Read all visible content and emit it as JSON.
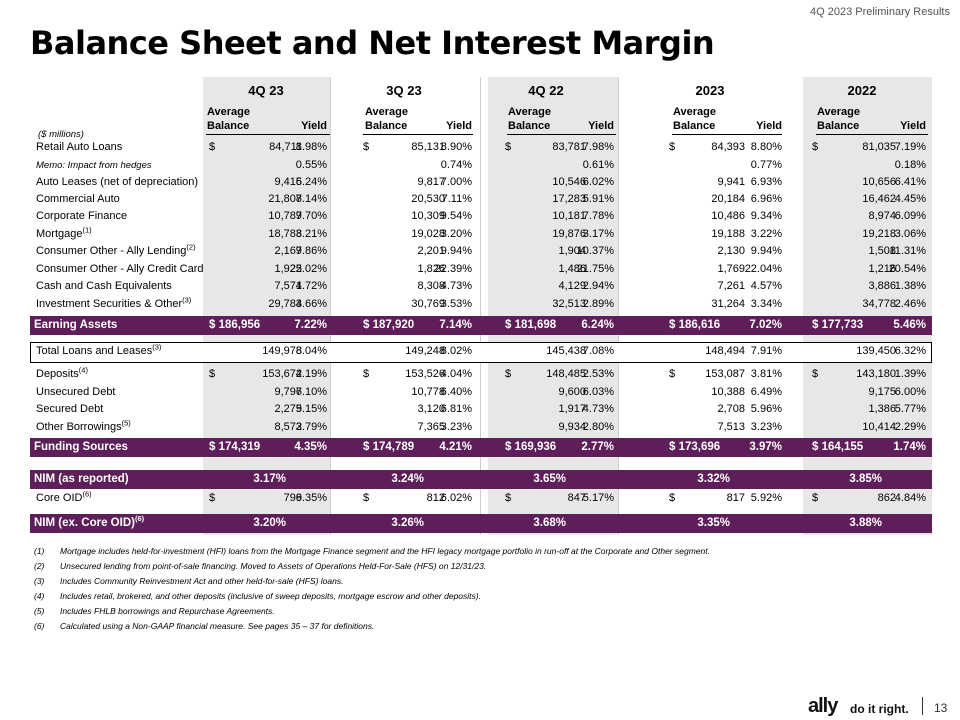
{
  "header": {
    "top_right": "4Q 2023 Preliminary Results",
    "title": "Balance Sheet and Net Interest Margin"
  },
  "periods": [
    "4Q 23",
    "3Q 23",
    "4Q 22",
    "2023",
    "2022"
  ],
  "subheaders": {
    "avg_line1": "Average",
    "avg_line2": "Balance",
    "yield": "Yield"
  },
  "units": "($ millions)",
  "rows": [
    {
      "label": "Retail Auto Loans",
      "sup": "",
      "memo": false,
      "cells": [
        [
          "$",
          "84,711",
          "8.98%"
        ],
        [
          "$",
          "85,131",
          "8.90%"
        ],
        [
          "$",
          "83,781",
          "7.98%"
        ],
        [
          "$",
          "84,393",
          "8.80%"
        ],
        [
          "$",
          "81,035",
          "7.19%"
        ]
      ]
    },
    {
      "label": "Memo: Impact from hedges",
      "sup": "",
      "memo": true,
      "cells": [
        [
          "",
          "",
          "0.55%"
        ],
        [
          "",
          "",
          "0.74%"
        ],
        [
          "",
          "",
          "0.61%"
        ],
        [
          "",
          "",
          "0.77%"
        ],
        [
          "",
          "",
          "0.18%"
        ]
      ]
    },
    {
      "label": "Auto Leases (net of depreciation)",
      "sup": "",
      "memo": false,
      "cells": [
        [
          "",
          "9,415",
          "6.24%"
        ],
        [
          "",
          "9,817",
          "7.00%"
        ],
        [
          "",
          "10,546",
          "6.02%"
        ],
        [
          "",
          "9,941",
          "6.93%"
        ],
        [
          "",
          "10,656",
          "6.41%"
        ]
      ]
    },
    {
      "label": "Commercial Auto",
      "sup": "",
      "memo": false,
      "cells": [
        [
          "",
          "21,808",
          "7.14%"
        ],
        [
          "",
          "20,530",
          "7.11%"
        ],
        [
          "",
          "17,283",
          "5.91%"
        ],
        [
          "",
          "20,184",
          "6.96%"
        ],
        [
          "",
          "16,462",
          "4.45%"
        ]
      ]
    },
    {
      "label": "Corporate Finance",
      "sup": "",
      "memo": false,
      "cells": [
        [
          "",
          "10,787",
          "9.70%"
        ],
        [
          "",
          "10,309",
          "9.54%"
        ],
        [
          "",
          "10,181",
          "7.78%"
        ],
        [
          "",
          "10,486",
          "9.34%"
        ],
        [
          "",
          "8,974",
          "6.09%"
        ]
      ]
    },
    {
      "label": "Mortgage",
      "sup": "(1)",
      "memo": false,
      "cells": [
        [
          "",
          "18,788",
          "3.21%"
        ],
        [
          "",
          "19,028",
          "3.20%"
        ],
        [
          "",
          "19,876",
          "3.17%"
        ],
        [
          "",
          "19,188",
          "3.22%"
        ],
        [
          "",
          "19,218",
          "3.06%"
        ]
      ]
    },
    {
      "label": "Consumer Other - Ally Lending",
      "sup": "(2)",
      "memo": false,
      "cells": [
        [
          "",
          "2,167",
          "9.86%"
        ],
        [
          "",
          "2,201",
          "9.94%"
        ],
        [
          "",
          "1,904",
          "10.37%"
        ],
        [
          "",
          "2,130",
          "9.94%"
        ],
        [
          "",
          "1,508",
          "11.31%"
        ]
      ]
    },
    {
      "label": "Consumer Other - Ally Credit Card",
      "sup": "",
      "memo": false,
      "cells": [
        [
          "",
          "1,925",
          "22.02%"
        ],
        [
          "",
          "1,826",
          "22.39%"
        ],
        [
          "",
          "1,486",
          "21.75%"
        ],
        [
          "",
          "1,769",
          "22.04%"
        ],
        [
          "",
          "1,216",
          "20.54%"
        ]
      ]
    },
    {
      "label": "Cash and Cash Equivalents",
      "sup": "",
      "memo": false,
      "cells": [
        [
          "",
          "7,571",
          "4.72%"
        ],
        [
          "",
          "8,308",
          "4.73%"
        ],
        [
          "",
          "4,129",
          "2.94%"
        ],
        [
          "",
          "7,261",
          "4.57%"
        ],
        [
          "",
          "3,886",
          "1.38%"
        ]
      ]
    },
    {
      "label": "Investment Securities & Other",
      "sup": "(3)",
      "memo": false,
      "cells": [
        [
          "",
          "29,784",
          "3.66%"
        ],
        [
          "",
          "30,769",
          "3.53%"
        ],
        [
          "",
          "32,513",
          "2.89%"
        ],
        [
          "",
          "31,264",
          "3.34%"
        ],
        [
          "",
          "34,778",
          "2.46%"
        ]
      ]
    }
  ],
  "earning_assets": {
    "label": "Earning Assets",
    "sup": "",
    "cells": [
      [
        "$ 186,956",
        "7.22%"
      ],
      [
        "$ 187,920",
        "7.14%"
      ],
      [
        "$ 181,698",
        "6.24%"
      ],
      [
        "$ 186,616",
        "7.02%"
      ],
      [
        "$ 177,733",
        "5.46%"
      ]
    ]
  },
  "total_loans": {
    "label": "Total Loans and Leases",
    "sup": "(3)",
    "memo": false,
    "cells": [
      [
        "",
        "149,978",
        "8.04%"
      ],
      [
        "",
        "149,248",
        "8.02%"
      ],
      [
        "",
        "145,438",
        "7.08%"
      ],
      [
        "",
        "148,494",
        "7.91%"
      ],
      [
        "",
        "139,450",
        "6.32%"
      ]
    ]
  },
  "funding_rows": [
    {
      "label": "Deposits",
      "sup": "(4)",
      "memo": false,
      "cells": [
        [
          "$",
          "153,672",
          "4.19%"
        ],
        [
          "$",
          "153,526",
          "4.04%"
        ],
        [
          "$",
          "148,485",
          "2.53%"
        ],
        [
          "$",
          "153,087",
          "3.81%"
        ],
        [
          "$",
          "143,180",
          "1.39%"
        ]
      ]
    },
    {
      "label": "Unsecured Debt",
      "sup": "",
      "memo": false,
      "cells": [
        [
          "",
          "9,796",
          "7.10%"
        ],
        [
          "",
          "10,778",
          "6.40%"
        ],
        [
          "",
          "9,600",
          "6.03%"
        ],
        [
          "",
          "10,388",
          "6.49%"
        ],
        [
          "",
          "9,175",
          "6.00%"
        ]
      ]
    },
    {
      "label": "Secured Debt",
      "sup": "",
      "memo": false,
      "cells": [
        [
          "",
          "2,279",
          "5.15%"
        ],
        [
          "",
          "3,120",
          "6.81%"
        ],
        [
          "",
          "1,917",
          "4.73%"
        ],
        [
          "",
          "2,708",
          "5.96%"
        ],
        [
          "",
          "1,386",
          "5.77%"
        ]
      ]
    },
    {
      "label": "Other Borrowings",
      "sup": "(5)",
      "memo": false,
      "cells": [
        [
          "",
          "8,572",
          "3.79%"
        ],
        [
          "",
          "7,365",
          "3.23%"
        ],
        [
          "",
          "9,934",
          "2.80%"
        ],
        [
          "",
          "7,513",
          "3.23%"
        ],
        [
          "",
          "10,414",
          "2.29%"
        ]
      ]
    }
  ],
  "funding_sources": {
    "label": "Funding Sources",
    "sup": "",
    "cells": [
      [
        "$ 174,319",
        "4.35%"
      ],
      [
        "$ 174,789",
        "4.21%"
      ],
      [
        "$ 169,936",
        "2.77%"
      ],
      [
        "$ 173,696",
        "3.97%"
      ],
      [
        "$ 164,155",
        "1.74%"
      ]
    ]
  },
  "nim_reported": {
    "label": "NIM (as reported)",
    "sup": "",
    "values": [
      "3.17%",
      "3.24%",
      "3.65%",
      "3.32%",
      "3.85%"
    ]
  },
  "core_oid": {
    "label": "Core OID",
    "sup": "(6)",
    "memo": false,
    "cells": [
      [
        "$",
        "799",
        "6.35%"
      ],
      [
        "$",
        "812",
        "6.02%"
      ],
      [
        "$",
        "847",
        "5.17%"
      ],
      [
        "$",
        "817",
        "5.92%"
      ],
      [
        "$",
        "862",
        "4.84%"
      ]
    ]
  },
  "nim_ex": {
    "label": "NIM (ex. Core OID)",
    "sup": "(6)",
    "values": [
      "3.20%",
      "3.26%",
      "3.68%",
      "3.35%",
      "3.88%"
    ]
  },
  "footnotes": [
    {
      "num": "(1)",
      "text": "Mortgage includes held-for-investment (HFI) loans from the Mortgage Finance segment and the HFI legacy mortgage portfolio in run-off at the Corporate and Other segment."
    },
    {
      "num": "(2)",
      "text": "Unsecured lending from point-of-sale financing. Moved to Assets of Operations Held-For-Sale (HFS) on 12/31/23."
    },
    {
      "num": "(3)",
      "text": "Includes Community Reinvestment Act and other held-for-sale (HFS) loans."
    },
    {
      "num": "(4)",
      "text": "Includes retail, brokered, and other deposits (inclusive of sweep deposits, mortgage escrow and other deposits)."
    },
    {
      "num": "(5)",
      "text": "Includes FHLB borrowings and Repurchase Agreements."
    },
    {
      "num": "(6)",
      "text": "Calculated using a Non-GAAP financial measure. See pages 35 – 37  for definitions."
    }
  ],
  "footer": {
    "brand": "ally",
    "tagline": "do it right.",
    "page_number": "13"
  }
}
